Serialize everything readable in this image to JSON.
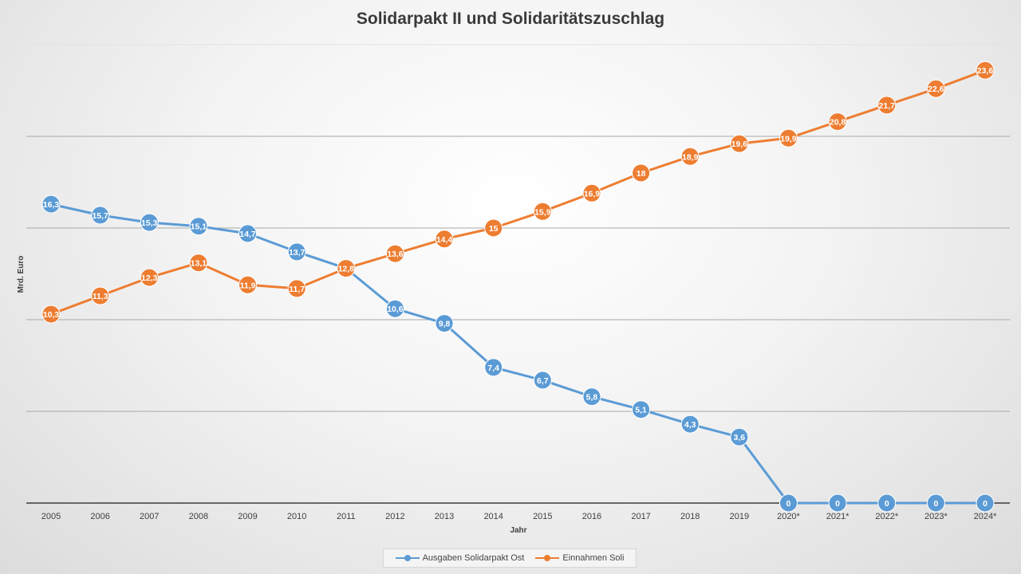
{
  "chart_data": {
    "type": "line",
    "title": "Solidarpakt II und Solidaritätszuschlag",
    "xlabel": "Jahr",
    "ylabel": "Mrd. Euro",
    "categories": [
      "2005",
      "2006",
      "2007",
      "2008",
      "2009",
      "2010",
      "2011",
      "2012",
      "2013",
      "2014",
      "2015",
      "2016",
      "2017",
      "2018",
      "2019",
      "2020*",
      "2021*",
      "2022*",
      "2023*",
      "2024*"
    ],
    "ylim": [
      0,
      25
    ],
    "grid": true,
    "legend_position": "bottom",
    "series": [
      {
        "name": "Ausgaben Solidarpakt Ost",
        "color": "#5b9bd5",
        "values": [
          16.3,
          15.7,
          15.3,
          15.1,
          14.7,
          13.7,
          12.8,
          10.6,
          9.8,
          7.4,
          6.7,
          5.8,
          5.1,
          4.3,
          3.6,
          0,
          0,
          0,
          0,
          0
        ],
        "labels": [
          "16,3",
          "15,7",
          "15,3",
          "15,1",
          "14,7",
          "13,7",
          "12,8",
          "10,6",
          "9,8",
          "7,4",
          "6,7",
          "5,8",
          "5,1",
          "4,3",
          "3,6",
          "0",
          "0",
          "0",
          "0",
          "0"
        ]
      },
      {
        "name": "Einnahmen Soli",
        "color": "#ed7d31",
        "values": [
          10.3,
          11.3,
          12.3,
          13.1,
          11.9,
          11.7,
          12.8,
          13.6,
          14.4,
          15,
          15.9,
          16.9,
          18,
          18.9,
          19.6,
          19.9,
          20.8,
          21.7,
          22.6,
          23.6
        ],
        "labels": [
          "10,3",
          "11,3",
          "12,3",
          "13,1",
          "11,9",
          "11,7",
          "12,8",
          "13,6",
          "14,4",
          "15",
          "15,9",
          "16,9",
          "18",
          "18,9",
          "19,6",
          "19,9",
          "20,8",
          "21,7",
          "22,6",
          "23,6"
        ]
      }
    ]
  }
}
